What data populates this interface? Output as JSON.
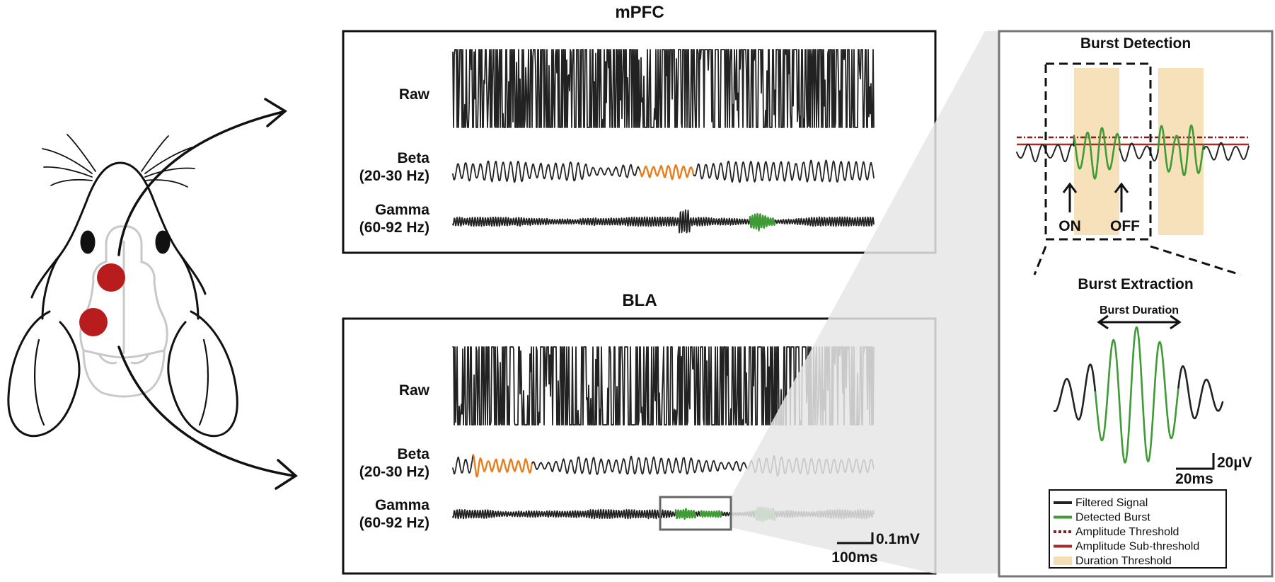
{
  "colors": {
    "raw": "#222222",
    "beta_burst": "#e87d1e",
    "gamma_burst": "#3f9b35",
    "amplitude_threshold": "#8b1a1a",
    "amplitude_subthreshold": "#a52a2a",
    "duration_threshold": "#f5deb3",
    "electrode": "#b91c1c"
  },
  "icons": {
    "rat": "rat-head-outline-icon"
  },
  "panels": {
    "mpfc": {
      "title": "mPFC",
      "raw_label": "Raw",
      "beta_label_1": "Beta",
      "beta_label_2": "(20-30 Hz)",
      "gamma_label_1": "Gamma",
      "gamma_label_2": "(60-92 Hz)"
    },
    "bla": {
      "title": "BLA",
      "raw_label": "Raw",
      "beta_label_1": "Beta",
      "beta_label_2": "(20-30 Hz)",
      "gamma_label_1": "Gamma",
      "gamma_label_2": "(60-92 Hz)",
      "scale_v": "0.1mV",
      "scale_t": "100ms"
    }
  },
  "detection": {
    "title": "Burst Detection",
    "on_label": "ON",
    "off_label": "OFF"
  },
  "extraction": {
    "title": "Burst Extraction",
    "duration_label": "Burst Duration",
    "scale_v": "20µV",
    "scale_t": "20ms"
  },
  "legend": {
    "items": [
      {
        "label": "Filtered Signal",
        "color": "#222222",
        "style": "solid"
      },
      {
        "label": "Detected Burst",
        "color": "#3f9b35",
        "style": "solid"
      },
      {
        "label": "Amplitude Threshold",
        "color": "#8b1a1a",
        "style": "dotted"
      },
      {
        "label": "Amplitude Sub-threshold",
        "color": "#a52a2a",
        "style": "solid"
      },
      {
        "label": "Duration Threshold",
        "color": "#f5deb3",
        "style": "band"
      }
    ]
  }
}
